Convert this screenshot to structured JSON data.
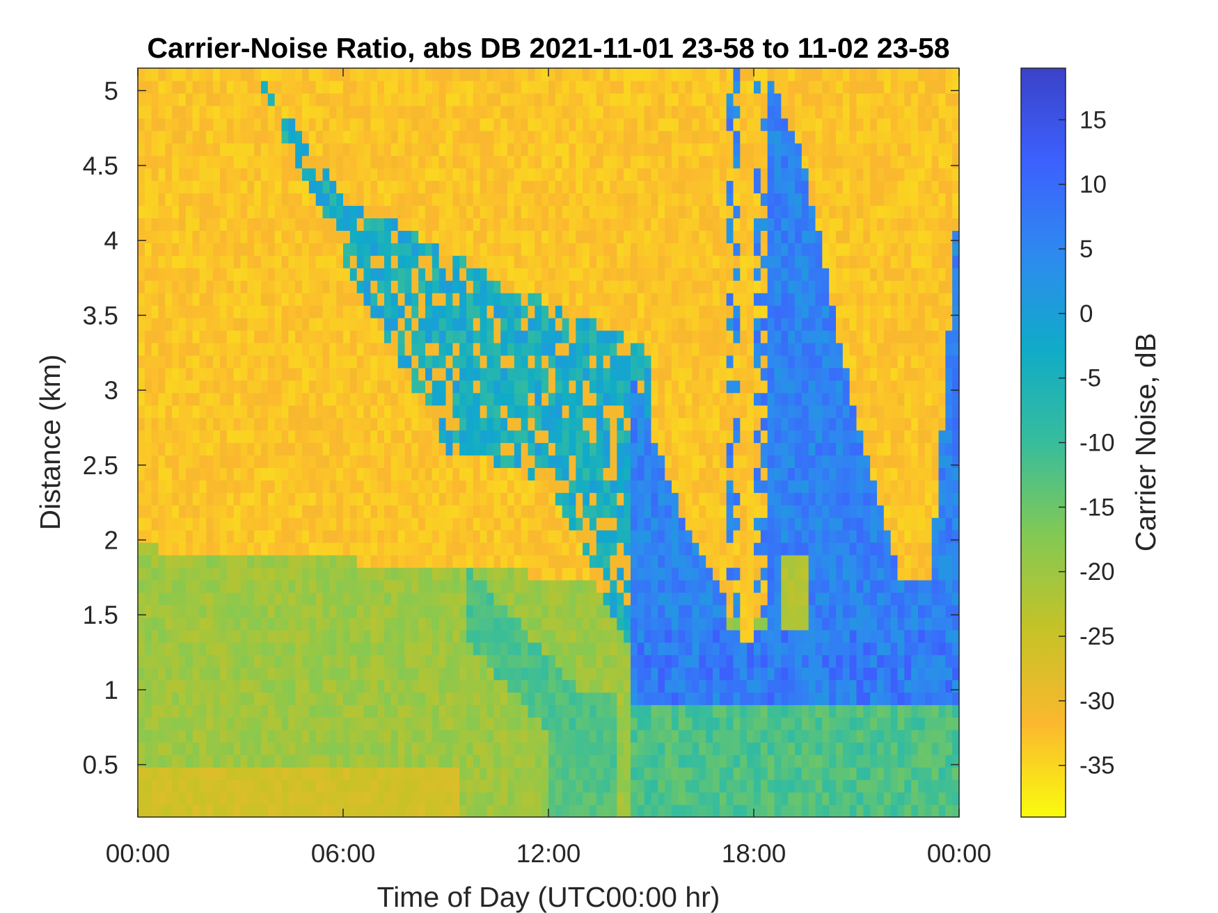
{
  "chart_data": {
    "type": "heatmap",
    "title": "Carrier-Noise Ratio, abs DB 2021-11-01 23-58 to 11-02 23-58",
    "xlabel": "Time of Day (UTC00:00 hr)",
    "ylabel": "Distance (km)",
    "x_ticks": [
      "00:00",
      "06:00",
      "12:00",
      "18:00",
      "00:00"
    ],
    "x_tick_hours": [
      0,
      6,
      12,
      18,
      24
    ],
    "xlim_hours": [
      0,
      24
    ],
    "y_ticks": [
      0.5,
      1,
      1.5,
      2,
      2.5,
      3,
      3.5,
      4,
      4.5,
      5
    ],
    "y_tick_labels": [
      "0.5",
      "1",
      "1.5",
      "2",
      "2.5",
      "3",
      "3.5",
      "4",
      "4.5",
      "5"
    ],
    "ylim": [
      0.15,
      5.15
    ],
    "colorbar": {
      "label": "Carrier Noise, dB",
      "range": [
        -39,
        19
      ],
      "ticks": [
        -35,
        -30,
        -25,
        -20,
        -15,
        -10,
        -5,
        0,
        5,
        10,
        15
      ],
      "tick_labels": [
        "-35",
        "-30",
        "-25",
        "-20",
        "-15",
        "-10",
        "-5",
        "0",
        "5",
        "10",
        "15"
      ],
      "colormap": "parula",
      "colormap_stops": [
        "#f9fb0e",
        "#fbb82f",
        "#c6c227",
        "#84c953",
        "#37bd9c",
        "#10abc8",
        "#2e8aef",
        "#3c61fe",
        "#3b42c8"
      ]
    },
    "regions_description_values": {
      "background_high_altitude_db": -33,
      "boundary_layer_db": -20,
      "surface_morning_db": -26,
      "aerosol_band_db": 0,
      "strong_return_db": 12
    }
  }
}
